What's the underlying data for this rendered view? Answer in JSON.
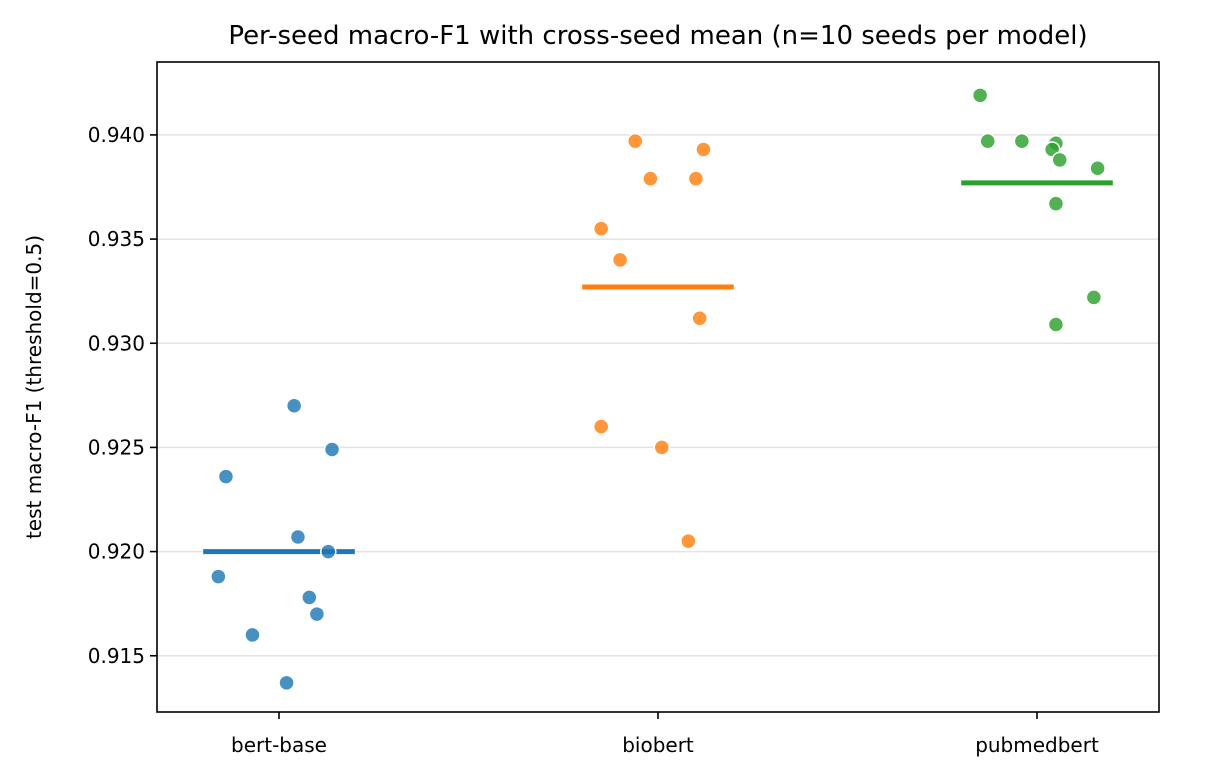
{
  "chart_data": {
    "type": "scatter",
    "title": "Per-seed macro-F1 with cross-seed mean (n=10 seeds per model)",
    "xlabel": "",
    "ylabel": "test macro-F1 (threshold=0.5)",
    "categories": [
      "bert-base",
      "biobert",
      "pubmedbert"
    ],
    "ylim": [
      0.9123,
      0.9435
    ],
    "yticks": [
      0.915,
      0.92,
      0.925,
      0.93,
      0.935,
      0.94
    ],
    "ytick_labels": [
      "0.915",
      "0.920",
      "0.925",
      "0.930",
      "0.935",
      "0.940"
    ],
    "grid": "horizontal",
    "colors": [
      "#1f77b4",
      "#ff7f0e",
      "#2ca02c"
    ],
    "series": [
      {
        "category": "bert-base",
        "values": [
          0.927,
          0.9249,
          0.9236,
          0.9207,
          0.92,
          0.9188,
          0.9178,
          0.917,
          0.916,
          0.9137
        ],
        "jitter": [
          0.04,
          0.14,
          -0.14,
          0.05,
          0.13,
          -0.16,
          0.08,
          0.1,
          -0.07,
          0.02
        ],
        "mean": 0.92
      },
      {
        "category": "biobert",
        "values": [
          0.9397,
          0.9393,
          0.9379,
          0.9379,
          0.9355,
          0.934,
          0.9312,
          0.926,
          0.925,
          0.9205
        ],
        "jitter": [
          -0.06,
          0.12,
          -0.02,
          0.1,
          -0.15,
          -0.1,
          0.11,
          -0.15,
          0.01,
          0.08
        ],
        "mean": 0.9327
      },
      {
        "category": "pubmedbert",
        "values": [
          0.9419,
          0.9397,
          0.9397,
          0.9396,
          0.9393,
          0.9388,
          0.9384,
          0.9367,
          0.9322,
          0.9309
        ],
        "jitter": [
          -0.15,
          -0.13,
          -0.04,
          0.05,
          0.04,
          0.06,
          0.16,
          0.05,
          0.15,
          0.05
        ],
        "mean": 0.9377
      }
    ]
  }
}
